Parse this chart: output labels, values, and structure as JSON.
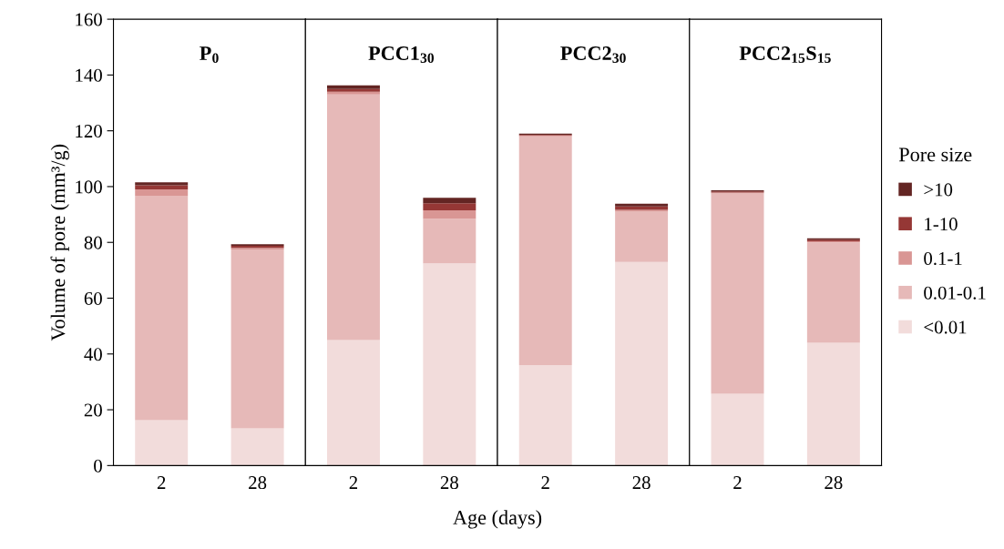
{
  "chart_data": [
    {
      "type": "bar",
      "stacked": true,
      "title": "P$_{0}$",
      "ylabel": "Volume of pore (mm³/g)",
      "categories": [
        "2",
        "28"
      ],
      "ylim": [
        0,
        160
      ],
      "yticks": [
        0,
        20,
        40,
        60,
        80,
        100,
        120,
        140,
        160
      ],
      "series": [
        {
          "color": "#f2dcdb",
          "values": [
            16.3,
            13.3
          ]
        },
        {
          "color": "#e6b9b8",
          "values": [
            80.4,
            64.2
          ]
        },
        {
          "color": "#d99694",
          "values": [
            2.3,
            0.5
          ]
        },
        {
          "color": "#953735",
          "values": [
            1.5,
            0.8
          ]
        },
        {
          "color": "#632523",
          "values": [
            1.0,
            0.5
          ]
        }
      ]
    },
    {
      "type": "bar",
      "stacked": true,
      "title": "PCC1$_{30}$",
      "categories": [
        "2",
        "28"
      ],
      "ylim": [
        0,
        160
      ],
      "tick_labels": "x",
      "series": [
        {
          "color": "#f2dcdb",
          "values": [
            45,
            72.5
          ]
        },
        {
          "color": "#e6b9b8",
          "values": [
            88,
            16
          ]
        },
        {
          "color": "#d99694",
          "values": [
            1.0,
            3.0
          ]
        },
        {
          "color": "#953735",
          "values": [
            1.0,
            2.5
          ]
        },
        {
          "color": "#632523",
          "values": [
            1.3,
            2.0
          ]
        }
      ]
    },
    {
      "type": "bar",
      "stacked": true,
      "title": "PCC2$_{30}$",
      "xlabel": "Age (days)",
      "categories": [
        "2",
        "28"
      ],
      "ylim": [
        0,
        160
      ],
      "tick_labels": "x",
      "series": [
        {
          "color": "#f2dcdb",
          "values": [
            36,
            73
          ]
        },
        {
          "color": "#e6b9b8",
          "values": [
            82,
            18
          ]
        },
        {
          "color": "#d99694",
          "values": [
            0.3,
            0.7
          ]
        },
        {
          "color": "#953735",
          "values": [
            0.3,
            1.2
          ]
        },
        {
          "color": "#632523",
          "values": [
            0.4,
            1.0
          ]
        }
      ]
    },
    {
      "type": "bar",
      "stacked": true,
      "title": "PCC2$_{15}$S$_{15}$",
      "categories": [
        "2",
        "28"
      ],
      "ylim": [
        0,
        160
      ],
      "tick_labels": "x",
      "legend": "right",
      "legend_title": "Pore size",
      "series": [
        {
          "name": "<0.01",
          "color": "#f2dcdb",
          "values": [
            25.7,
            44
          ]
        },
        {
          "name": "0.01-0.1",
          "color": "#e6b9b8",
          "values": [
            71.8,
            36
          ]
        },
        {
          "name": "0.1-1",
          "color": "#d99694",
          "values": [
            0.4,
            0.4
          ]
        },
        {
          "name": "1-10",
          "color": "#953735",
          "values": [
            0.4,
            0.6
          ]
        },
        {
          "name": ">10",
          "color": "#632523",
          "values": [
            0.4,
            0.5
          ]
        }
      ]
    }
  ]
}
